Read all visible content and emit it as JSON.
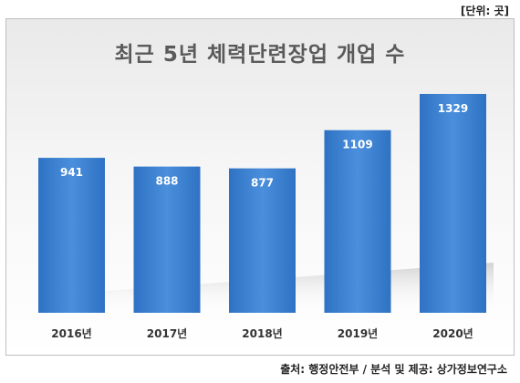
{
  "unit_label": "[단위: 곳]",
  "source_label": "출처: 행정안전부 / 분석 및 제공: 상가정보연구소",
  "chart_data": {
    "type": "bar",
    "title": "최근 5년 체력단련장업 개업 수",
    "categories": [
      "2016년",
      "2017년",
      "2018년",
      "2019년",
      "2020년"
    ],
    "values": [
      941,
      888,
      877,
      1109,
      1329
    ],
    "ylim": [
      0,
      1329
    ],
    "grid": false,
    "legend": "none",
    "bar_color": "#3a7fd0",
    "bar_color_dark": "#2c68b4"
  }
}
